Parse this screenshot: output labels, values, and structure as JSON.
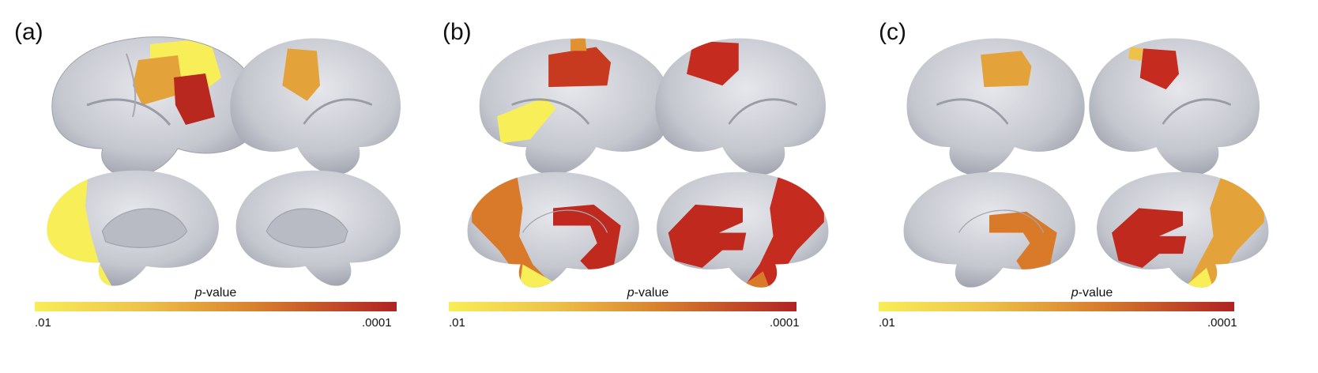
{
  "panels": [
    {
      "label": "(a)",
      "colorbar": {
        "title_italic": "p",
        "title_rest": "-value",
        "min_label": ".01",
        "max_label": ".0001"
      }
    },
    {
      "label": "(b)",
      "colorbar": {
        "title_italic": "p",
        "title_rest": "-value",
        "min_label": ".01",
        "max_label": ".0001"
      }
    },
    {
      "label": "(c)",
      "colorbar": {
        "title_italic": "p",
        "title_rest": "-value",
        "min_label": ".01",
        "max_label": ".0001"
      }
    }
  ],
  "colors": {
    "low": "#f8ee57",
    "mid_low": "#eec24a",
    "mid_high": "#d9822e",
    "high": "#b02222",
    "cortex": "#c5c7cf"
  }
}
